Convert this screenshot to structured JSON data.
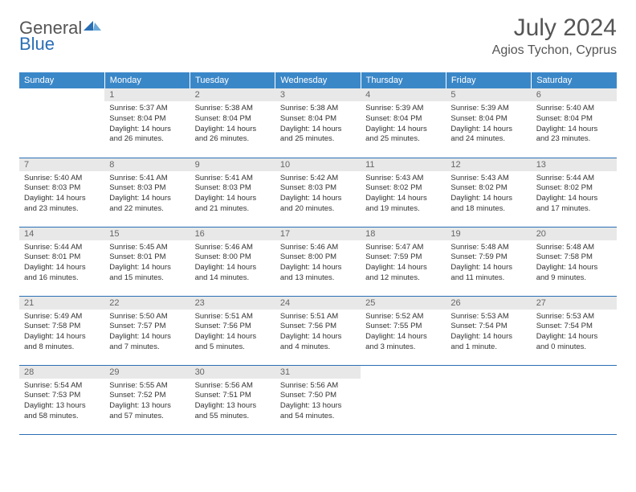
{
  "brand": {
    "text_general": "General",
    "text_blue": "Blue"
  },
  "header": {
    "title": "July 2024",
    "location": "Agios Tychon, Cyprus"
  },
  "colors": {
    "header_bg": "#3a87c8",
    "brand_blue": "#2a6fb5",
    "daynum_bg": "#e8e8e8",
    "border": "#2a6fb5"
  },
  "weekdays": [
    "Sunday",
    "Monday",
    "Tuesday",
    "Wednesday",
    "Thursday",
    "Friday",
    "Saturday"
  ],
  "weeks": [
    [
      null,
      {
        "n": "1",
        "sunrise": "5:37 AM",
        "sunset": "8:04 PM",
        "daylight": "14 hours and 26 minutes."
      },
      {
        "n": "2",
        "sunrise": "5:38 AM",
        "sunset": "8:04 PM",
        "daylight": "14 hours and 26 minutes."
      },
      {
        "n": "3",
        "sunrise": "5:38 AM",
        "sunset": "8:04 PM",
        "daylight": "14 hours and 25 minutes."
      },
      {
        "n": "4",
        "sunrise": "5:39 AM",
        "sunset": "8:04 PM",
        "daylight": "14 hours and 25 minutes."
      },
      {
        "n": "5",
        "sunrise": "5:39 AM",
        "sunset": "8:04 PM",
        "daylight": "14 hours and 24 minutes."
      },
      {
        "n": "6",
        "sunrise": "5:40 AM",
        "sunset": "8:04 PM",
        "daylight": "14 hours and 23 minutes."
      }
    ],
    [
      {
        "n": "7",
        "sunrise": "5:40 AM",
        "sunset": "8:03 PM",
        "daylight": "14 hours and 23 minutes."
      },
      {
        "n": "8",
        "sunrise": "5:41 AM",
        "sunset": "8:03 PM",
        "daylight": "14 hours and 22 minutes."
      },
      {
        "n": "9",
        "sunrise": "5:41 AM",
        "sunset": "8:03 PM",
        "daylight": "14 hours and 21 minutes."
      },
      {
        "n": "10",
        "sunrise": "5:42 AM",
        "sunset": "8:03 PM",
        "daylight": "14 hours and 20 minutes."
      },
      {
        "n": "11",
        "sunrise": "5:43 AM",
        "sunset": "8:02 PM",
        "daylight": "14 hours and 19 minutes."
      },
      {
        "n": "12",
        "sunrise": "5:43 AM",
        "sunset": "8:02 PM",
        "daylight": "14 hours and 18 minutes."
      },
      {
        "n": "13",
        "sunrise": "5:44 AM",
        "sunset": "8:02 PM",
        "daylight": "14 hours and 17 minutes."
      }
    ],
    [
      {
        "n": "14",
        "sunrise": "5:44 AM",
        "sunset": "8:01 PM",
        "daylight": "14 hours and 16 minutes."
      },
      {
        "n": "15",
        "sunrise": "5:45 AM",
        "sunset": "8:01 PM",
        "daylight": "14 hours and 15 minutes."
      },
      {
        "n": "16",
        "sunrise": "5:46 AM",
        "sunset": "8:00 PM",
        "daylight": "14 hours and 14 minutes."
      },
      {
        "n": "17",
        "sunrise": "5:46 AM",
        "sunset": "8:00 PM",
        "daylight": "14 hours and 13 minutes."
      },
      {
        "n": "18",
        "sunrise": "5:47 AM",
        "sunset": "7:59 PM",
        "daylight": "14 hours and 12 minutes."
      },
      {
        "n": "19",
        "sunrise": "5:48 AM",
        "sunset": "7:59 PM",
        "daylight": "14 hours and 11 minutes."
      },
      {
        "n": "20",
        "sunrise": "5:48 AM",
        "sunset": "7:58 PM",
        "daylight": "14 hours and 9 minutes."
      }
    ],
    [
      {
        "n": "21",
        "sunrise": "5:49 AM",
        "sunset": "7:58 PM",
        "daylight": "14 hours and 8 minutes."
      },
      {
        "n": "22",
        "sunrise": "5:50 AM",
        "sunset": "7:57 PM",
        "daylight": "14 hours and 7 minutes."
      },
      {
        "n": "23",
        "sunrise": "5:51 AM",
        "sunset": "7:56 PM",
        "daylight": "14 hours and 5 minutes."
      },
      {
        "n": "24",
        "sunrise": "5:51 AM",
        "sunset": "7:56 PM",
        "daylight": "14 hours and 4 minutes."
      },
      {
        "n": "25",
        "sunrise": "5:52 AM",
        "sunset": "7:55 PM",
        "daylight": "14 hours and 3 minutes."
      },
      {
        "n": "26",
        "sunrise": "5:53 AM",
        "sunset": "7:54 PM",
        "daylight": "14 hours and 1 minute."
      },
      {
        "n": "27",
        "sunrise": "5:53 AM",
        "sunset": "7:54 PM",
        "daylight": "14 hours and 0 minutes."
      }
    ],
    [
      {
        "n": "28",
        "sunrise": "5:54 AM",
        "sunset": "7:53 PM",
        "daylight": "13 hours and 58 minutes."
      },
      {
        "n": "29",
        "sunrise": "5:55 AM",
        "sunset": "7:52 PM",
        "daylight": "13 hours and 57 minutes."
      },
      {
        "n": "30",
        "sunrise": "5:56 AM",
        "sunset": "7:51 PM",
        "daylight": "13 hours and 55 minutes."
      },
      {
        "n": "31",
        "sunrise": "5:56 AM",
        "sunset": "7:50 PM",
        "daylight": "13 hours and 54 minutes."
      },
      null,
      null,
      null
    ]
  ],
  "labels": {
    "sunrise": "Sunrise: ",
    "sunset": "Sunset: ",
    "daylight": "Daylight: "
  }
}
